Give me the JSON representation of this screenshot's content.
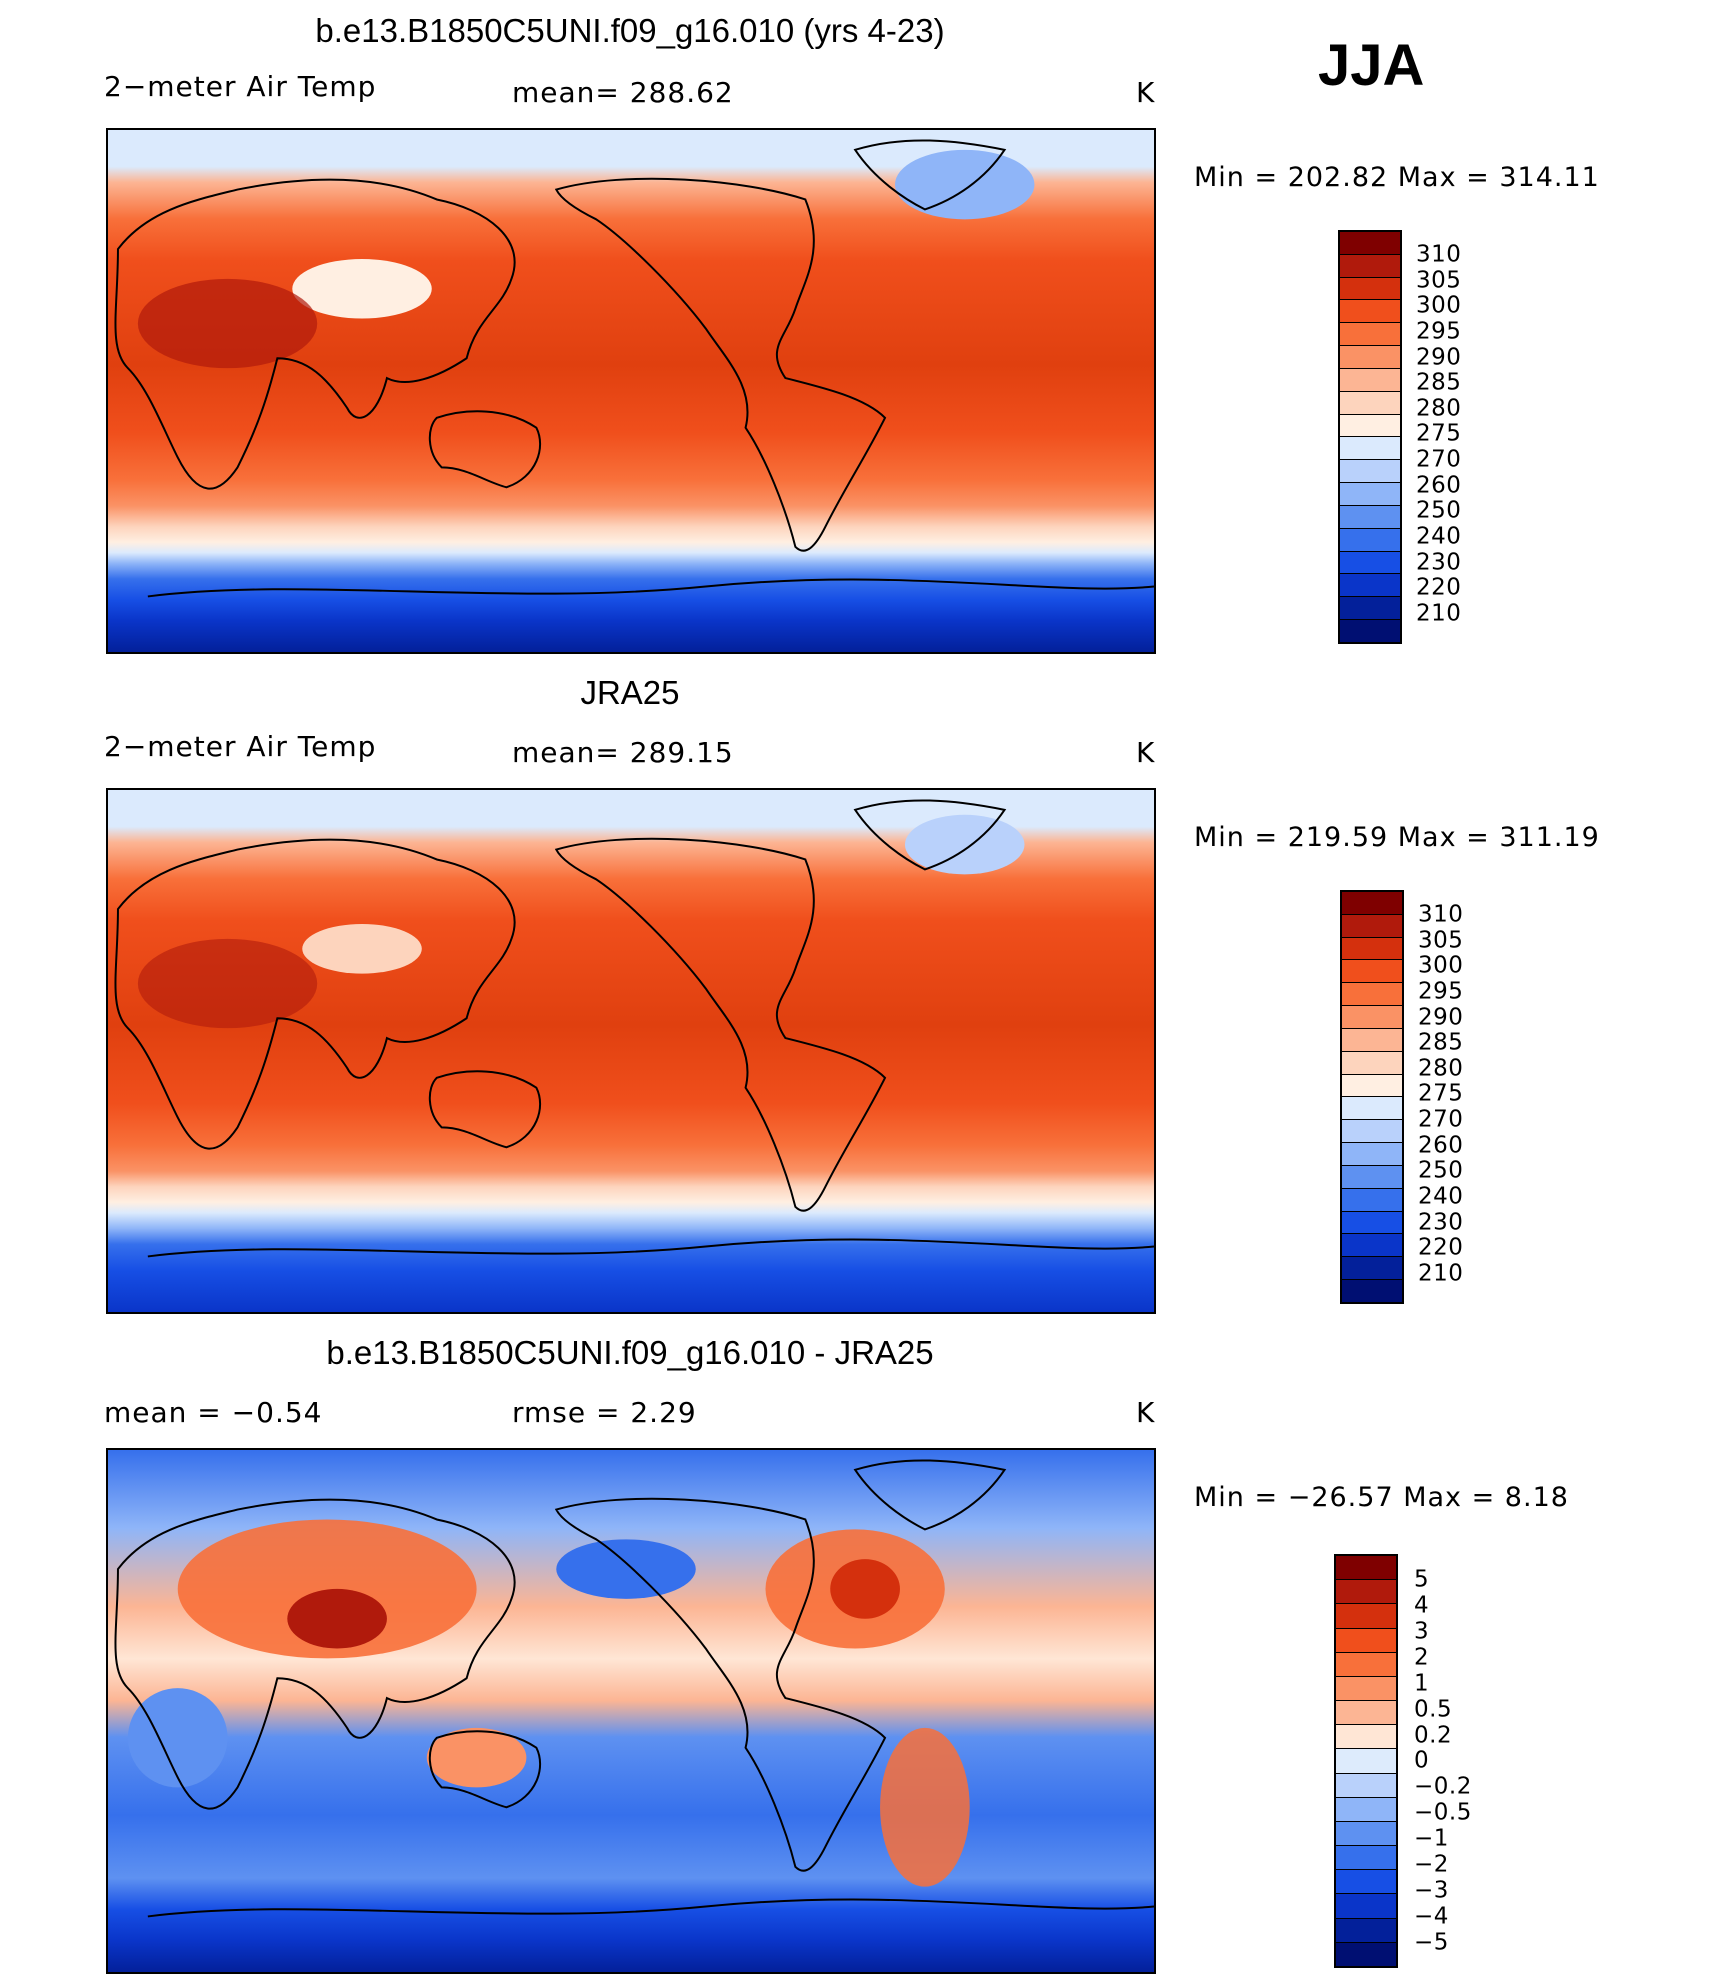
{
  "season": "JJA",
  "palettes": {
    "abs": [
      "#7f0000",
      "#b01a0c",
      "#d4300d",
      "#f04f1c",
      "#f8703a",
      "#fa9265",
      "#fcb594",
      "#fdd4bd",
      "#ffefe2",
      "#dbeafd",
      "#b9d1fb",
      "#8fb5f8",
      "#5e91f1",
      "#3670ec",
      "#174fe5",
      "#0a35c9",
      "#03209a",
      "#000f72"
    ],
    "diff": [
      "#7f0000",
      "#b01a0c",
      "#d4300d",
      "#f04f1c",
      "#f8703a",
      "#fa9265",
      "#fcb594",
      "#ffe6d5",
      "#ddebfc",
      "#b9d1fb",
      "#8fb5f8",
      "#5e91f1",
      "#3670ec",
      "#174fe5",
      "#0a35c9",
      "#03209a",
      "#000f72"
    ]
  },
  "panels": [
    {
      "title": "b.e13.B1850C5UNI.f09_g16.010 (yrs 4-23)",
      "left_label": "2−meter Air Temp",
      "center_label": "mean=  288.62",
      "units": "K",
      "minmax": "Min  =  202.82  Max  =  314.11",
      "colorbar_labels": [
        "310",
        "305",
        "300",
        "295",
        "290",
        "285",
        "280",
        "275",
        "270",
        "260",
        "250",
        "240",
        "230",
        "220",
        "210"
      ],
      "palette": "abs"
    },
    {
      "title": "JRA25",
      "left_label": "2−meter Air Temp",
      "center_label": "mean=  289.15",
      "units": "K",
      "minmax": "Min  =  219.59  Max  =  311.19",
      "colorbar_labels": [
        "310",
        "305",
        "300",
        "295",
        "290",
        "285",
        "280",
        "275",
        "270",
        "260",
        "250",
        "240",
        "230",
        "220",
        "210"
      ],
      "palette": "abs"
    },
    {
      "title": "b.e13.B1850C5UNI.f09_g16.010 - JRA25",
      "left_label": "mean  =    −0.54",
      "center_label": "rmse  =     2.29",
      "units": "K",
      "minmax": "Min  =  −26.57  Max  =     8.18",
      "colorbar_labels": [
        "5",
        "4",
        "3",
        "2",
        "1",
        "0.5",
        "0.2",
        "0",
        "−0.2",
        "−0.5",
        "−1",
        "−2",
        "−3",
        "−4",
        "−5"
      ],
      "palette": "diff"
    }
  ]
}
